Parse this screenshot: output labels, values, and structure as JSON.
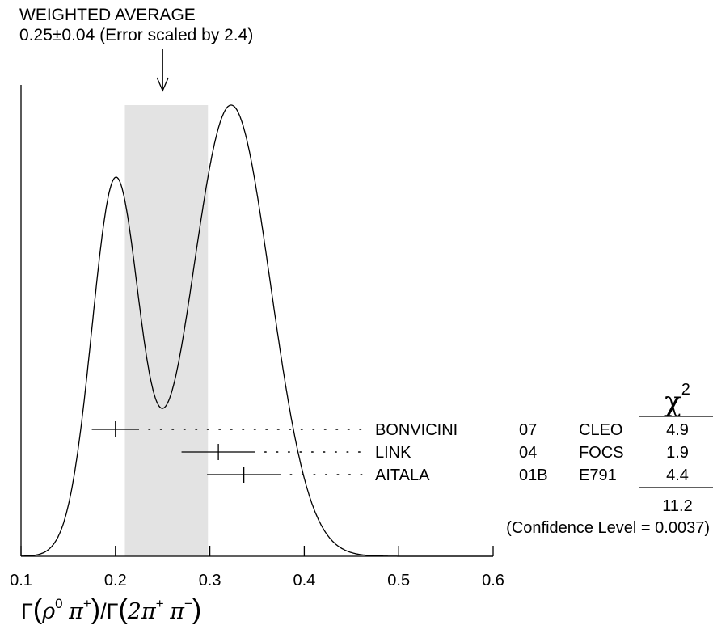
{
  "average": {
    "title": "WEIGHTED AVERAGE",
    "value_text": "0.25±0.04 (Error scaled by 2.4)",
    "value": 0.25,
    "error": 0.04,
    "band": [
      0.21,
      0.298
    ]
  },
  "xlabel_parts": {
    "gamma1": "Γ",
    "rho": "ρ",
    "rho_sup": "0",
    "pi1": "π",
    "pi1_sup": "+",
    "slash": "/",
    "gamma2": "Γ",
    "two_pi": "2π",
    "pi2_sup": "+",
    "pi2": "π",
    "pi3_sup": "−"
  },
  "chi2_header": "χ2",
  "chi2_total": "11.2",
  "confidence_text": "(Confidence Level = 0.0037)",
  "chart_data": {
    "type": "ideogram",
    "xlim": [
      0.1,
      0.6
    ],
    "xticks": [
      0.1,
      0.2,
      0.3,
      0.4,
      0.5,
      0.6
    ],
    "xlabel": "Γ(ρ0π+)/Γ(2π+π−)",
    "weighted_average": 0.25,
    "weighted_average_error": 0.04,
    "error_scale": 2.4,
    "measurements": [
      {
        "author": "BONVICINI",
        "year": "07",
        "experiment": "CLEO",
        "value": 0.2,
        "err_low": 0.025,
        "err_high": 0.025,
        "chi2": "4.9"
      },
      {
        "author": "LINK",
        "year": "04",
        "experiment": "FOCS",
        "value": 0.309,
        "err_low": 0.039,
        "err_high": 0.039,
        "chi2": "1.9"
      },
      {
        "author": "AITALA",
        "year": "01B",
        "experiment": "E791",
        "value": 0.336,
        "err_low": 0.039,
        "err_high": 0.039,
        "chi2": "4.4"
      }
    ],
    "chi2_total": 11.2,
    "confidence_level": 0.0037
  }
}
